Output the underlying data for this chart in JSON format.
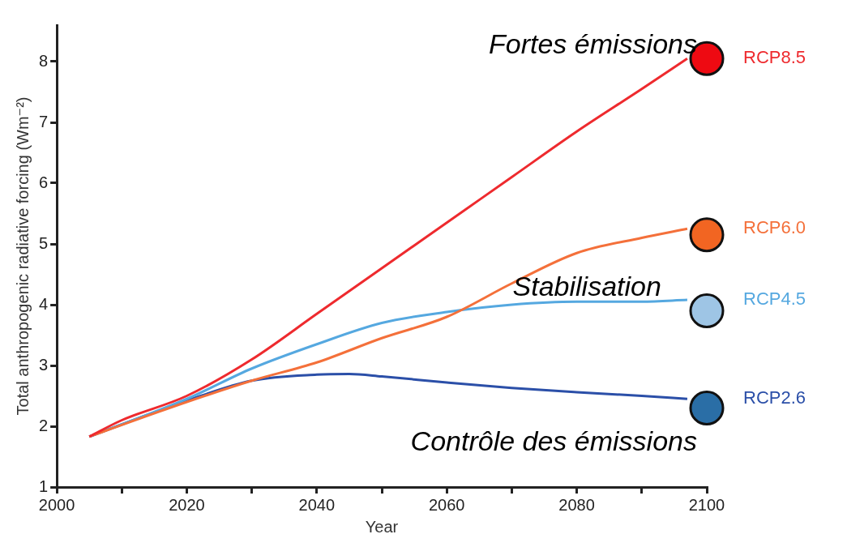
{
  "chart_data": {
    "type": "line",
    "xlabel": "Year",
    "ylabel": "Total anthropogenic radiative forcing (Wm⁻²)",
    "xlim": [
      2000,
      2100
    ],
    "xticks": [
      2000,
      {
        "value": 2010,
        "label": null
      },
      2020,
      {
        "value": 2030,
        "label": null
      },
      2040,
      {
        "value": 2050,
        "label": null
      },
      2060,
      {
        "value": 2070,
        "label": null
      },
      2080,
      {
        "value": 2090,
        "label": null
      },
      2100
    ],
    "ylim": [
      1,
      8.6
    ],
    "yticks": [
      1,
      2,
      3,
      4,
      5,
      6,
      7,
      8
    ],
    "grid": false,
    "legend": false,
    "marker": "none",
    "line_style": "solid",
    "series": [
      {
        "name": "RCP8.5",
        "color": "#ee2a2e",
        "x": [
          2005,
          2010,
          2020,
          2030,
          2040,
          2050,
          2060,
          2070,
          2080,
          2090,
          2097
        ],
        "values": [
          1.83,
          2.1,
          2.5,
          3.1,
          3.85,
          4.6,
          5.35,
          6.1,
          6.85,
          7.55,
          8.05
        ]
      },
      {
        "name": "RCP6.0",
        "color": "#f4703a",
        "x": [
          2005,
          2020,
          2030,
          2040,
          2050,
          2060,
          2070,
          2080,
          2090,
          2097
        ],
        "values": [
          1.83,
          2.4,
          2.75,
          3.05,
          3.45,
          3.8,
          4.35,
          4.85,
          5.1,
          5.25
        ]
      },
      {
        "name": "RCP4.5",
        "color": "#55a8e0",
        "x": [
          2005,
          2020,
          2030,
          2040,
          2050,
          2060,
          2070,
          2080,
          2090,
          2097
        ],
        "values": [
          1.83,
          2.45,
          2.95,
          3.35,
          3.7,
          3.88,
          4.0,
          4.05,
          4.05,
          4.08
        ]
      },
      {
        "name": "RCP2.6",
        "color": "#2b4fa8",
        "x": [
          2005,
          2020,
          2030,
          2040,
          2045,
          2050,
          2060,
          2070,
          2080,
          2090,
          2097
        ],
        "values": [
          1.83,
          2.42,
          2.75,
          2.85,
          2.86,
          2.82,
          2.72,
          2.63,
          2.56,
          2.5,
          2.45
        ]
      },
      {
        "type": "scatter",
        "marker": "circle",
        "x": [
          2100,
          2100,
          2100,
          2100
        ],
        "values": [
          8.05,
          5.15,
          3.9,
          2.3
        ],
        "colors": [
          "#ee0a12",
          "#f26522",
          "#9ec5e5",
          "#2a6ea6"
        ]
      }
    ],
    "annotations": [
      "Fortes émissions",
      "Stabilisation",
      "Contrôle des émissions"
    ]
  }
}
